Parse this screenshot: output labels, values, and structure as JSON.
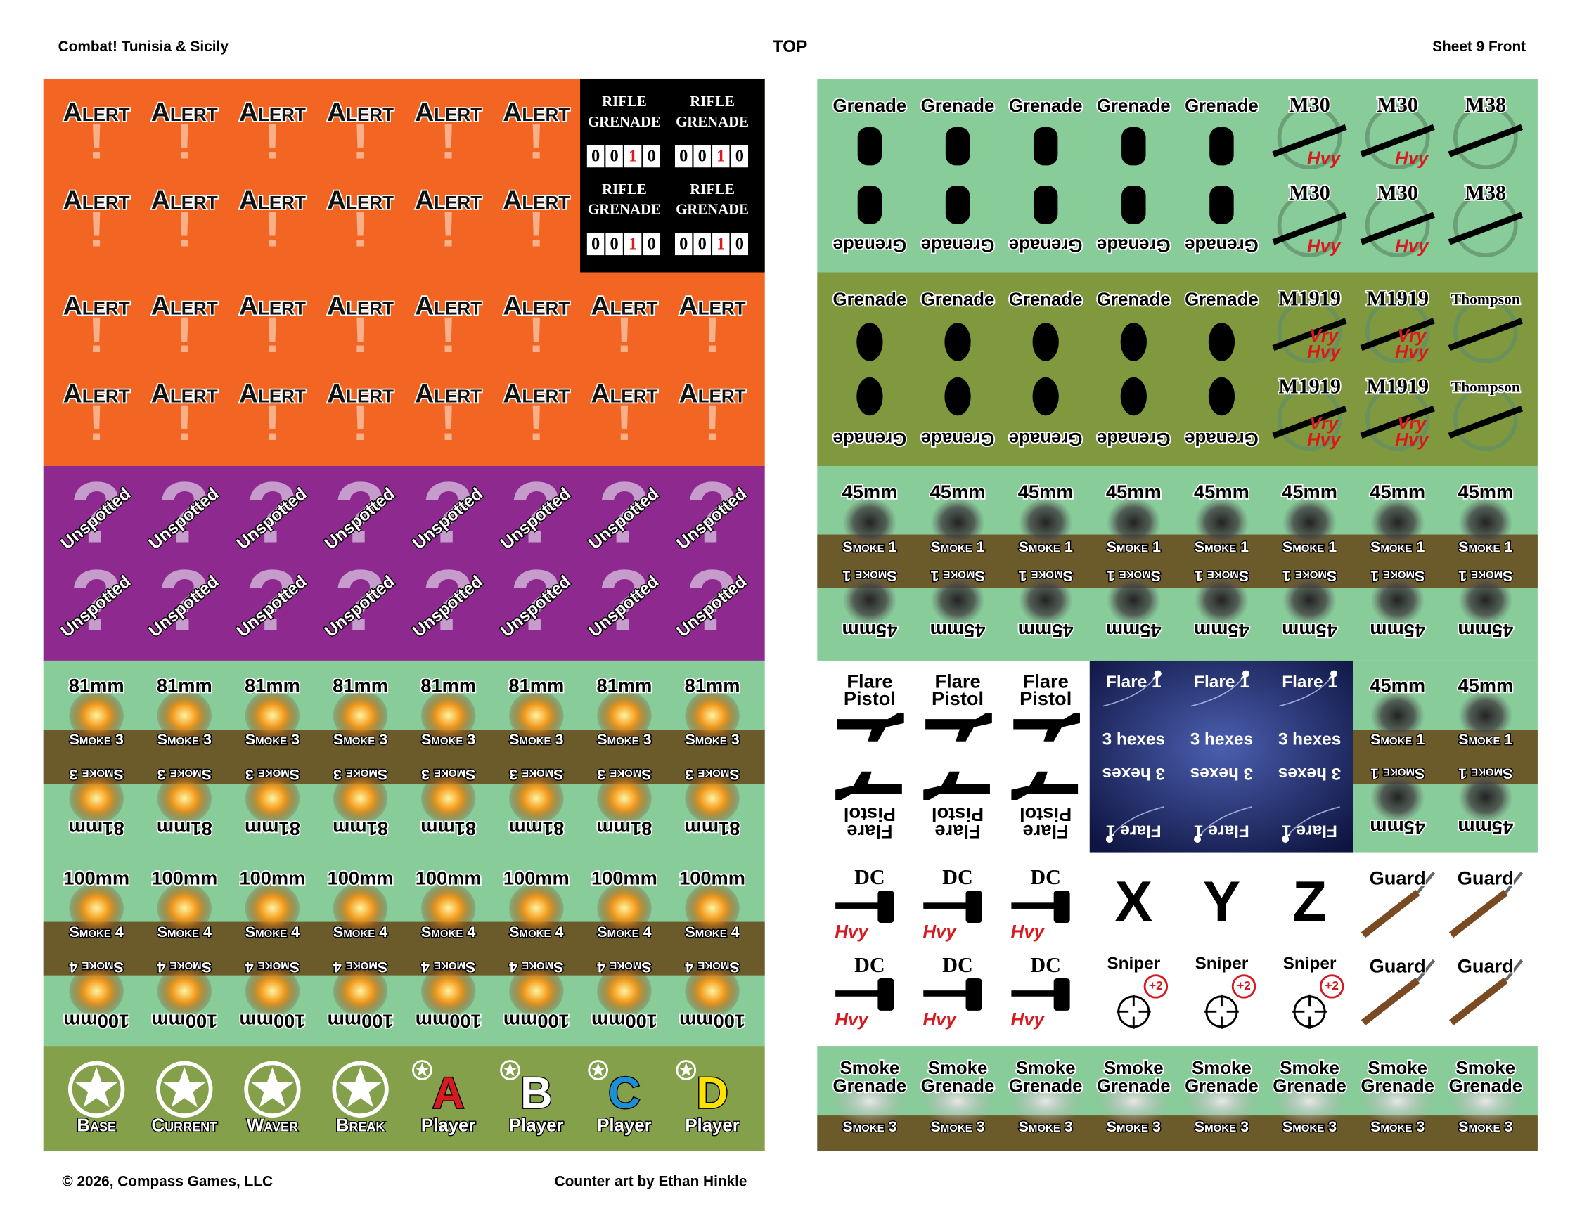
{
  "header": {
    "left": "Combat! Tunisia & Sicily",
    "center": "TOP",
    "right": "Sheet 9 Front"
  },
  "footer": {
    "left": "© 2026, Compass Games, LLC",
    "center": "Counter art by Ethan Hinkle"
  },
  "left_sheet": {
    "alert": {
      "symbol": "!",
      "rows": [
        [
          "Alert",
          "Alert",
          "Alert",
          "Alert",
          "Alert",
          "Alert"
        ],
        [
          "Alert",
          "Alert",
          "Alert",
          "Alert",
          "Alert",
          "Alert"
        ],
        [
          "Alert",
          "Alert",
          "Alert",
          "Alert",
          "Alert",
          "Alert",
          "Alert",
          "Alert"
        ],
        [
          "Alert",
          "Alert",
          "Alert",
          "Alert",
          "Alert",
          "Alert",
          "Alert",
          "Alert"
        ]
      ]
    },
    "rifle_grenade": [
      {
        "lines": [
          "RIFLE",
          "GRENADE"
        ],
        "digits": [
          "0",
          "0",
          "1",
          "0"
        ]
      },
      {
        "lines": [
          "RIFLE",
          "GRENADE"
        ],
        "digits": [
          "0",
          "0",
          "1",
          "0"
        ]
      },
      {
        "lines": [
          "RIFLE",
          "GRENADE"
        ],
        "digits": [
          "0",
          "0",
          "1",
          "0"
        ]
      },
      {
        "lines": [
          "RIFLE",
          "GRENADE"
        ],
        "digits": [
          "0",
          "0",
          "1",
          "0"
        ]
      }
    ],
    "unspotted": {
      "symbol": "?",
      "rows": [
        [
          "Unspotted",
          "Unspotted",
          "Unspotted",
          "Unspotted",
          "Unspotted",
          "Unspotted",
          "Unspotted",
          "Unspotted"
        ],
        [
          "Unspotted",
          "Unspotted",
          "Unspotted",
          "Unspotted",
          "Unspotted",
          "Unspotted",
          "Unspotted",
          "Unspotted"
        ]
      ]
    },
    "mortar": {
      "rows": [
        [
          {
            "label": "81mm",
            "band": "Smoke 3"
          },
          {
            "label": "81mm",
            "band": "Smoke 3"
          },
          {
            "label": "81mm",
            "band": "Smoke 3"
          },
          {
            "label": "81mm",
            "band": "Smoke 3"
          },
          {
            "label": "81mm",
            "band": "Smoke 3"
          },
          {
            "label": "81mm",
            "band": "Smoke 3"
          },
          {
            "label": "81mm",
            "band": "Smoke 3"
          },
          {
            "label": "81mm",
            "band": "Smoke 3"
          }
        ],
        [
          {
            "label": "81mm",
            "band": "Smoke 3"
          },
          {
            "label": "81mm",
            "band": "Smoke 3"
          },
          {
            "label": "81mm",
            "band": "Smoke 3"
          },
          {
            "label": "81mm",
            "band": "Smoke 3"
          },
          {
            "label": "81mm",
            "band": "Smoke 3"
          },
          {
            "label": "81mm",
            "band": "Smoke 3"
          },
          {
            "label": "81mm",
            "band": "Smoke 3"
          },
          {
            "label": "81mm",
            "band": "Smoke 3"
          }
        ],
        [
          {
            "label": "100mm",
            "band": "Smoke 4"
          },
          {
            "label": "100mm",
            "band": "Smoke 4"
          },
          {
            "label": "100mm",
            "band": "Smoke 4"
          },
          {
            "label": "100mm",
            "band": "Smoke 4"
          },
          {
            "label": "100mm",
            "band": "Smoke 4"
          },
          {
            "label": "100mm",
            "band": "Smoke 4"
          },
          {
            "label": "100mm",
            "band": "Smoke 4"
          },
          {
            "label": "100mm",
            "band": "Smoke 4"
          }
        ],
        [
          {
            "label": "100mm",
            "band": "Smoke 4"
          },
          {
            "label": "100mm",
            "band": "Smoke 4"
          },
          {
            "label": "100mm",
            "band": "Smoke 4"
          },
          {
            "label": "100mm",
            "band": "Smoke 4"
          },
          {
            "label": "100mm",
            "band": "Smoke 4"
          },
          {
            "label": "100mm",
            "band": "Smoke 4"
          },
          {
            "label": "100mm",
            "band": "Smoke 4"
          },
          {
            "label": "100mm",
            "band": "Smoke 4"
          }
        ]
      ]
    },
    "markers": [
      {
        "label": "Base"
      },
      {
        "label": "Current"
      },
      {
        "label": "Waver"
      },
      {
        "label": "Break"
      },
      {
        "letter": "A",
        "label": "Player"
      },
      {
        "letter": "B",
        "label": "Player"
      },
      {
        "letter": "C",
        "label": "Player"
      },
      {
        "letter": "D",
        "label": "Player"
      }
    ]
  },
  "right_sheet": {
    "stick_grenade": {
      "rows": [
        [
          "Grenade",
          "Grenade",
          "Grenade",
          "Grenade",
          "Grenade"
        ],
        [
          "Grenade",
          "Grenade",
          "Grenade",
          "Grenade",
          "Grenade"
        ]
      ]
    },
    "mg_1": {
      "rows": [
        [
          {
            "label": "M30",
            "tags": [
              "Hvy"
            ]
          },
          {
            "label": "M30",
            "tags": [
              "Hvy"
            ]
          },
          {
            "label": "M38",
            "tags": []
          }
        ],
        [
          {
            "label": "M30",
            "tags": [
              "Hvy"
            ]
          },
          {
            "label": "M30",
            "tags": [
              "Hvy"
            ]
          },
          {
            "label": "M38",
            "tags": []
          }
        ]
      ]
    },
    "frag_grenade": {
      "rows": [
        [
          "Grenade",
          "Grenade",
          "Grenade",
          "Grenade",
          "Grenade"
        ],
        [
          "Grenade",
          "Grenade",
          "Grenade",
          "Grenade",
          "Grenade"
        ]
      ]
    },
    "mg_2": {
      "rows": [
        [
          {
            "label": "M1919",
            "tags": [
              "Vry",
              "Hvy"
            ]
          },
          {
            "label": "M1919",
            "tags": [
              "Vry",
              "Hvy"
            ]
          },
          {
            "label": "Thompson",
            "tags": []
          }
        ],
        [
          {
            "label": "M1919",
            "tags": [
              "Vry",
              "Hvy"
            ]
          },
          {
            "label": "M1919",
            "tags": [
              "Vry",
              "Hvy"
            ]
          },
          {
            "label": "Thompson",
            "tags": []
          }
        ]
      ]
    },
    "mortar_45": {
      "rows": [
        [
          {
            "label": "45mm",
            "band": "Smoke 1"
          },
          {
            "label": "45mm",
            "band": "Smoke 1"
          },
          {
            "label": "45mm",
            "band": "Smoke 1"
          },
          {
            "label": "45mm",
            "band": "Smoke 1"
          },
          {
            "label": "45mm",
            "band": "Smoke 1"
          },
          {
            "label": "45mm",
            "band": "Smoke 1"
          },
          {
            "label": "45mm",
            "band": "Smoke 1"
          },
          {
            "label": "45mm",
            "band": "Smoke 1"
          }
        ],
        [
          {
            "label": "45mm",
            "band": "Smoke 1"
          },
          {
            "label": "45mm",
            "band": "Smoke 1"
          },
          {
            "label": "45mm",
            "band": "Smoke 1"
          },
          {
            "label": "45mm",
            "band": "Smoke 1"
          },
          {
            "label": "45mm",
            "band": "Smoke 1"
          },
          {
            "label": "45mm",
            "band": "Smoke 1"
          },
          {
            "label": "45mm",
            "band": "Smoke 1"
          },
          {
            "label": "45mm",
            "band": "Smoke 1"
          }
        ]
      ]
    },
    "flare_pistol": {
      "rows": [
        [
          [
            "Flare",
            "Pistol"
          ],
          [
            "Flare",
            "Pistol"
          ],
          [
            "Flare",
            "Pistol"
          ]
        ],
        [
          [
            "Flare",
            "Pistol"
          ],
          [
            "Flare",
            "Pistol"
          ],
          [
            "Flare",
            "Pistol"
          ]
        ]
      ]
    },
    "flare": {
      "rows": [
        [
          {
            "label": "Flare 1",
            "range": "3 hexes"
          },
          {
            "label": "Flare 1",
            "range": "3 hexes"
          },
          {
            "label": "Flare 1",
            "range": "3 hexes"
          }
        ],
        [
          {
            "label": "Flare 1",
            "range": "3 hexes"
          },
          {
            "label": "Flare 1",
            "range": "3 hexes"
          },
          {
            "label": "Flare 1",
            "range": "3 hexes"
          }
        ]
      ]
    },
    "mortar_45_b": {
      "rows": [
        [
          {
            "label": "45mm",
            "band": "Smoke 1"
          },
          {
            "label": "45mm",
            "band": "Smoke 1"
          }
        ],
        [
          {
            "label": "45mm",
            "band": "Smoke 1"
          },
          {
            "label": "45mm",
            "band": "Smoke 1"
          }
        ]
      ]
    },
    "dc": {
      "rows": [
        [
          {
            "label": "DC",
            "tag": "Hvy"
          },
          {
            "label": "DC",
            "tag": "Hvy"
          },
          {
            "label": "DC",
            "tag": "Hvy"
          }
        ],
        [
          {
            "label": "DC",
            "tag": "Hvy"
          },
          {
            "label": "DC",
            "tag": "Hvy"
          },
          {
            "label": "DC",
            "tag": "Hvy"
          }
        ]
      ]
    },
    "letters": [
      "X",
      "Y",
      "Z"
    ],
    "sniper": [
      {
        "label": "Sniper",
        "mod": "+2"
      },
      {
        "label": "Sniper",
        "mod": "+2"
      },
      {
        "label": "Sniper",
        "mod": "+2"
      }
    ],
    "guard": {
      "rows": [
        [
          "Guard",
          "Guard"
        ],
        [
          "Guard",
          "Guard"
        ]
      ]
    },
    "smoke_grenade": [
      {
        "lines": [
          "Smoke",
          "Grenade"
        ],
        "band": "Smoke 3"
      },
      {
        "lines": [
          "Smoke",
          "Grenade"
        ],
        "band": "Smoke 3"
      },
      {
        "lines": [
          "Smoke",
          "Grenade"
        ],
        "band": "Smoke 3"
      },
      {
        "lines": [
          "Smoke",
          "Grenade"
        ],
        "band": "Smoke 3"
      },
      {
        "lines": [
          "Smoke",
          "Grenade"
        ],
        "band": "Smoke 3"
      },
      {
        "lines": [
          "Smoke",
          "Grenade"
        ],
        "band": "Smoke 3"
      },
      {
        "lines": [
          "Smoke",
          "Grenade"
        ],
        "band": "Smoke 3"
      },
      {
        "lines": [
          "Smoke",
          "Grenade"
        ],
        "band": "Smoke 3"
      }
    ]
  }
}
